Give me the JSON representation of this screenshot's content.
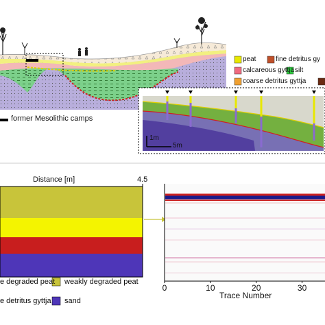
{
  "top_panel": {
    "legend": [
      {
        "label": "peat",
        "color": "#e8e800"
      },
      {
        "label": "fine detritus gy",
        "color": "#c0502a"
      },
      {
        "label": "calcareous gyttja",
        "color": "#f06a80"
      },
      {
        "label": "silt",
        "color": "#2ecc40"
      },
      {
        "label": "coarse detritus gyttja",
        "color": "#f0a030"
      },
      {
        "label": "",
        "color": "#6b2a12"
      }
    ],
    "camps_label": "former Mesolithic camps",
    "gpr_inset": {
      "scale_vertical": "1m",
      "scale_horizontal": "5m"
    }
  },
  "bottom_left": {
    "title": "Distance [m]",
    "max_label": "4.5",
    "layers": [
      {
        "name": "weakly degraded peat",
        "color": "#c8c43a"
      },
      {
        "name": "degraded peat",
        "color": "#f4f400"
      },
      {
        "name": "detritus gyttja",
        "color": "#c81e1e"
      },
      {
        "name": "sand",
        "color": "#4e36b8"
      }
    ],
    "legend": [
      {
        "label": "e degraded peat",
        "color": "#f4f400"
      },
      {
        "label": "weakly degraded peat",
        "color": "#c8c43a"
      },
      {
        "label": "e detritus gyttja",
        "color": "#c81e1e"
      },
      {
        "label": "sand",
        "color": "#4e36b8"
      }
    ]
  },
  "chart_data": {
    "type": "heatmap",
    "title": "",
    "xlabel": "Trace Number",
    "ylabel": "",
    "x_ticks": [
      "0",
      "10",
      "20",
      "30"
    ],
    "xlim": [
      0,
      35
    ]
  }
}
